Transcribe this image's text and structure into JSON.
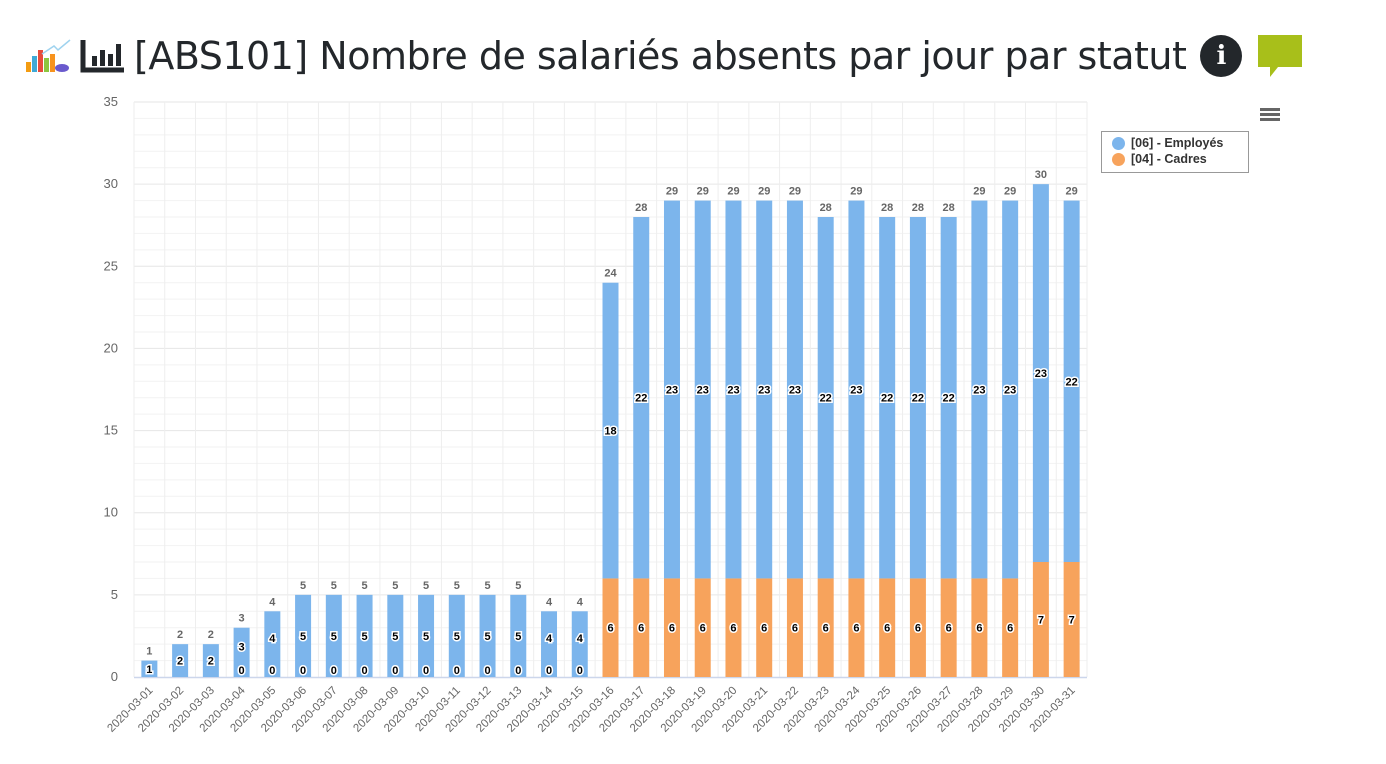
{
  "header": {
    "title": "[ABS101] Nombre de salariés absents par jour par statut",
    "icons": [
      "report-logo-icon",
      "bar-chart-icon",
      "info-icon",
      "comment-icon"
    ],
    "info_glyph": "i"
  },
  "chart_data": {
    "type": "bar",
    "stacked": true,
    "title": "",
    "xlabel": "",
    "ylabel": "",
    "ylim": [
      0,
      35
    ],
    "yticks": [
      0,
      5,
      10,
      15,
      20,
      25,
      30,
      35
    ],
    "grid": true,
    "legend_position": "top-right",
    "categories": [
      "2020-03-01",
      "2020-03-02",
      "2020-03-03",
      "2020-03-04",
      "2020-03-05",
      "2020-03-06",
      "2020-03-07",
      "2020-03-08",
      "2020-03-09",
      "2020-03-10",
      "2020-03-11",
      "2020-03-12",
      "2020-03-13",
      "2020-03-14",
      "2020-03-15",
      "2020-03-16",
      "2020-03-17",
      "2020-03-18",
      "2020-03-19",
      "2020-03-20",
      "2020-03-21",
      "2020-03-22",
      "2020-03-23",
      "2020-03-24",
      "2020-03-25",
      "2020-03-26",
      "2020-03-27",
      "2020-03-28",
      "2020-03-29",
      "2020-03-30",
      "2020-03-31"
    ],
    "series": [
      {
        "name": "[06] - Employés",
        "color": "#7cb5ec",
        "values": [
          1,
          2,
          2,
          3,
          4,
          5,
          5,
          5,
          5,
          5,
          5,
          5,
          5,
          4,
          4,
          18,
          22,
          23,
          23,
          23,
          23,
          23,
          22,
          23,
          22,
          22,
          22,
          23,
          23,
          23,
          22
        ]
      },
      {
        "name": "[04] - Cadres",
        "color": "#f7a35c",
        "values": [
          null,
          null,
          null,
          0,
          0,
          0,
          0,
          0,
          0,
          0,
          0,
          0,
          0,
          0,
          0,
          6,
          6,
          6,
          6,
          6,
          6,
          6,
          6,
          6,
          6,
          6,
          6,
          6,
          6,
          7,
          7
        ]
      }
    ],
    "totals": [
      1,
      2,
      2,
      3,
      4,
      5,
      5,
      5,
      5,
      5,
      5,
      5,
      5,
      4,
      4,
      24,
      28,
      29,
      29,
      29,
      29,
      29,
      28,
      29,
      28,
      28,
      28,
      29,
      29,
      30,
      29
    ]
  }
}
